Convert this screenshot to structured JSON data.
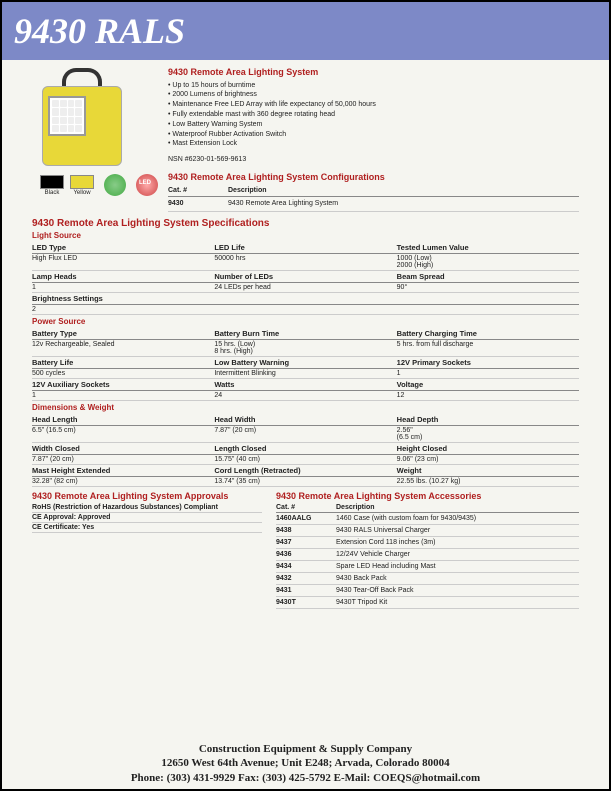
{
  "header": {
    "title": "9430 RALS"
  },
  "product": {
    "title": "9430 Remote Area Lighting System",
    "bullets": [
      "• Up to 15 hours of burntime",
      "• 2000 Lumens of brightness",
      "• Maintenance Free LED Array with life expectancy of 50,000 hours",
      "• Fully extendable mast with 360 degree rotating head",
      "• Low Battery Warning System",
      "• Waterproof Rubber Activation Switch",
      "• Mast Extension Lock"
    ],
    "nsn": "NSN #6230-01-569-9613"
  },
  "swatches": [
    {
      "name": "Black"
    },
    {
      "name": "Yellow"
    }
  ],
  "config": {
    "title": "9430 Remote Area Lighting System Configurations",
    "cols": [
      "Cat. #",
      "Description"
    ],
    "rows": [
      [
        "9430",
        "9430 Remote Area Lighting System"
      ]
    ]
  },
  "specs": {
    "title": "9430 Remote Area Lighting System Specifications",
    "sections": [
      {
        "sub": "Light Source",
        "rows": [
          {
            "h": [
              "LED Type",
              "LED Life",
              "Tested Lumen Value"
            ],
            "d": [
              "High Flux LED",
              "50000 hrs",
              "1000 (Low)\n2000 (High)"
            ]
          },
          {
            "h": [
              "Lamp Heads",
              "Number of LEDs",
              "Beam Spread"
            ],
            "d": [
              "1",
              "24 LEDs per head",
              "90°"
            ]
          },
          {
            "h": [
              "Brightness Settings",
              "",
              ""
            ],
            "d": [
              "2",
              "",
              ""
            ]
          }
        ]
      },
      {
        "sub": "Power Source",
        "rows": [
          {
            "h": [
              "Battery Type",
              "Battery Burn Time",
              "Battery Charging Time"
            ],
            "d": [
              "12v Rechargeable, Sealed",
              "15 hrs. (Low)\n8 hrs. (High)",
              "5 hrs. from full discharge"
            ]
          },
          {
            "h": [
              "Battery Life",
              "Low Battery Warning",
              "12V Primary Sockets"
            ],
            "d": [
              "500 cycles",
              "Intermittent Blinking",
              "1"
            ]
          },
          {
            "h": [
              "12V Auxiliary Sockets",
              "Watts",
              "Voltage"
            ],
            "d": [
              "1",
              "24",
              "12"
            ]
          }
        ]
      },
      {
        "sub": "Dimensions & Weight",
        "rows": [
          {
            "h": [
              "Head Length",
              "Head Width",
              "Head Depth"
            ],
            "d": [
              "6.5\" (16.5 cm)",
              "7.87\" (20 cm)",
              "2.56\"\n(6.5 cm)"
            ]
          },
          {
            "h": [
              "Width Closed",
              "Length Closed",
              "Height Closed"
            ],
            "d": [
              "7.87\" (20 cm)",
              "15.75\" (40 cm)",
              "9.06\" (23 cm)"
            ]
          },
          {
            "h": [
              "Mast Height Extended",
              "Cord Length (Retracted)",
              "Weight"
            ],
            "d": [
              "32.28\" (82 cm)",
              "13.74\" (35 cm)",
              "22.55 lbs. (10.27 kg)"
            ]
          }
        ]
      }
    ]
  },
  "approvals": {
    "title": "9430 Remote Area Lighting System Approvals",
    "lines": [
      "RoHS (Restriction of Hazardous Substances) Compliant",
      "CE Approval: Approved",
      "CE Certificate: Yes"
    ]
  },
  "accessories": {
    "title": "9430 Remote Area Lighting System Accessories",
    "cols": [
      "Cat. #",
      "Description"
    ],
    "rows": [
      [
        "1460AALG",
        "1460 Case (with custom foam for 9430/9435)"
      ],
      [
        "9438",
        "9430 RALS Universal Charger"
      ],
      [
        "9437",
        "Extension Cord 118 inches (3m)"
      ],
      [
        "9436",
        "12/24V Vehicle Charger"
      ],
      [
        "9434",
        "Spare LED Head including Mast"
      ],
      [
        "9432",
        "9430 Back Pack"
      ],
      [
        "9431",
        "9430 Tear-Off Back Pack"
      ],
      [
        "9430T",
        "9430T Tripod Kit"
      ]
    ]
  },
  "footer": {
    "company": "Construction Equipment & Supply Company",
    "address": "12650 West 64th Avenue;  Unit E248;  Arvada, Colorado  80004",
    "contact": "Phone: (303) 431-9929   Fax: (303) 425-5792   E-Mail: COEQS@hotmail.com"
  }
}
